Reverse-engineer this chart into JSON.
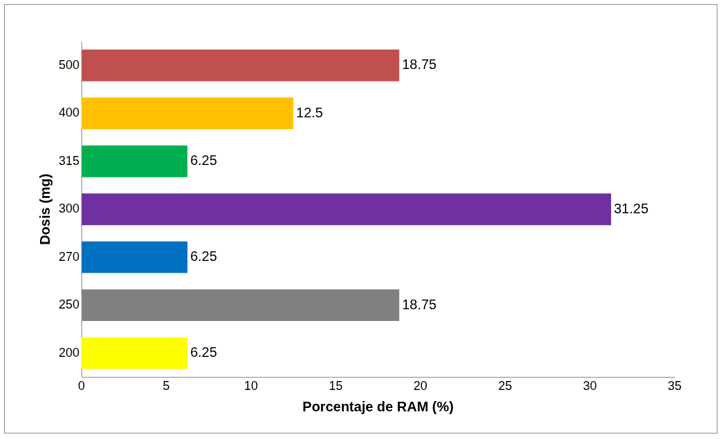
{
  "chart_data": {
    "type": "bar",
    "orientation": "horizontal",
    "xlabel": "Porcentaje de RAM (%)",
    "ylabel": "Dosis (mg)",
    "categories": [
      "500",
      "400",
      "315",
      "300",
      "270",
      "250",
      "200"
    ],
    "values": [
      18.75,
      12.5,
      6.25,
      31.25,
      6.25,
      18.75,
      6.25
    ],
    "colors": [
      "#c0504d",
      "#ffc000",
      "#00b050",
      "#7030a0",
      "#0070c0",
      "#808080",
      "#ffff00"
    ],
    "xlim": [
      0,
      35
    ],
    "xticks": [
      0,
      5,
      10,
      15,
      20,
      25,
      30,
      35
    ],
    "grid": false,
    "legend": false,
    "data_labels": true
  }
}
